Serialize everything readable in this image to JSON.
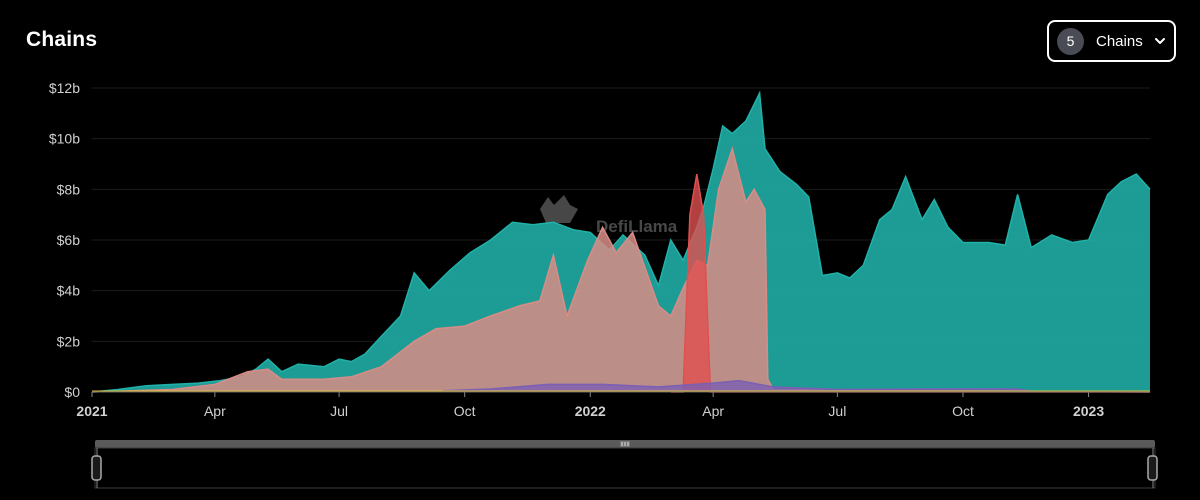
{
  "header": {
    "title": "Chains"
  },
  "chains_selector": {
    "count": "5",
    "label": "Chains",
    "icon": "chevron-down-icon"
  },
  "watermark": {
    "text": "DefiLlama"
  },
  "colors": {
    "series_1": "#20b2aa",
    "series_2": "#d88c86",
    "series_3": "#7b5fb3",
    "series_4": "#e05050",
    "series_5": "#e0c040",
    "background": "#000000"
  },
  "chart_data": {
    "type": "area",
    "title": "",
    "ylabel": "",
    "xlabel": "",
    "ylim": [
      0,
      12
    ],
    "y_unit": "$b",
    "y_tick_labels": [
      "$0",
      "$2b",
      "$4b",
      "$6b",
      "$8b",
      "$10b",
      "$12b"
    ],
    "x_tick_labels": [
      {
        "label": "2021",
        "date": "2021-01-01",
        "bold": true
      },
      {
        "label": "Apr",
        "date": "2021-04-01",
        "bold": false
      },
      {
        "label": "Jul",
        "date": "2021-07-01",
        "bold": false
      },
      {
        "label": "Oct",
        "date": "2021-10-01",
        "bold": false
      },
      {
        "label": "2022",
        "date": "2022-01-01",
        "bold": true
      },
      {
        "label": "Apr",
        "date": "2022-04-01",
        "bold": false
      },
      {
        "label": "Jul",
        "date": "2022-07-01",
        "bold": false
      },
      {
        "label": "Oct",
        "date": "2022-10-01",
        "bold": false
      },
      {
        "label": "2023",
        "date": "2023-01-01",
        "bold": true
      }
    ],
    "x_range": [
      "2021-01-01",
      "2023-02-15"
    ],
    "grid": true,
    "legend": "none",
    "series": [
      {
        "color": "#20b2aa",
        "points": [
          [
            "2021-01-01",
            0.0
          ],
          [
            "2021-01-20",
            0.1
          ],
          [
            "2021-02-10",
            0.25
          ],
          [
            "2021-03-01",
            0.3
          ],
          [
            "2021-03-20",
            0.35
          ],
          [
            "2021-04-05",
            0.45
          ],
          [
            "2021-04-20",
            0.6
          ],
          [
            "2021-05-01",
            0.9
          ],
          [
            "2021-05-10",
            1.3
          ],
          [
            "2021-05-20",
            0.8
          ],
          [
            "2021-06-01",
            1.1
          ],
          [
            "2021-06-20",
            1.0
          ],
          [
            "2021-07-01",
            1.3
          ],
          [
            "2021-07-10",
            1.2
          ],
          [
            "2021-07-20",
            1.5
          ],
          [
            "2021-08-01",
            2.2
          ],
          [
            "2021-08-15",
            3.0
          ],
          [
            "2021-08-25",
            4.7
          ],
          [
            "2021-09-05",
            4.0
          ],
          [
            "2021-09-20",
            4.8
          ],
          [
            "2021-10-05",
            5.5
          ],
          [
            "2021-10-20",
            6.0
          ],
          [
            "2021-11-05",
            6.7
          ],
          [
            "2021-11-20",
            6.6
          ],
          [
            "2021-12-05",
            6.7
          ],
          [
            "2021-12-20",
            6.4
          ],
          [
            "2022-01-01",
            6.3
          ],
          [
            "2022-01-15",
            5.6
          ],
          [
            "2022-01-25",
            6.2
          ],
          [
            "2022-02-10",
            5.4
          ],
          [
            "2022-02-20",
            4.2
          ],
          [
            "2022-03-01",
            6.0
          ],
          [
            "2022-03-10",
            5.2
          ],
          [
            "2022-03-20",
            6.5
          ],
          [
            "2022-03-25",
            7.3
          ],
          [
            "2022-04-01",
            8.8
          ],
          [
            "2022-04-08",
            10.5
          ],
          [
            "2022-04-15",
            10.2
          ],
          [
            "2022-04-25",
            10.7
          ],
          [
            "2022-05-05",
            11.8
          ],
          [
            "2022-05-09",
            9.6
          ],
          [
            "2022-05-20",
            8.7
          ],
          [
            "2022-06-01",
            8.2
          ],
          [
            "2022-06-10",
            7.7
          ],
          [
            "2022-06-20",
            4.6
          ],
          [
            "2022-07-01",
            4.7
          ],
          [
            "2022-07-10",
            4.5
          ],
          [
            "2022-07-20",
            5.0
          ],
          [
            "2022-08-01",
            6.8
          ],
          [
            "2022-08-10",
            7.2
          ],
          [
            "2022-08-20",
            8.5
          ],
          [
            "2022-09-01",
            6.8
          ],
          [
            "2022-09-10",
            7.6
          ],
          [
            "2022-09-20",
            6.5
          ],
          [
            "2022-10-01",
            5.9
          ],
          [
            "2022-10-20",
            5.9
          ],
          [
            "2022-11-01",
            5.8
          ],
          [
            "2022-11-10",
            7.8
          ],
          [
            "2022-11-20",
            5.7
          ],
          [
            "2022-12-05",
            6.2
          ],
          [
            "2022-12-20",
            5.9
          ],
          [
            "2023-01-01",
            6.0
          ],
          [
            "2023-01-15",
            7.8
          ],
          [
            "2023-01-25",
            8.3
          ],
          [
            "2023-02-05",
            8.6
          ],
          [
            "2023-02-15",
            8.0
          ]
        ]
      },
      {
        "color": "#d88c86",
        "points": [
          [
            "2021-01-01",
            0.0
          ],
          [
            "2021-03-01",
            0.1
          ],
          [
            "2021-04-01",
            0.3
          ],
          [
            "2021-04-25",
            0.8
          ],
          [
            "2021-05-10",
            0.9
          ],
          [
            "2021-05-20",
            0.5
          ],
          [
            "2021-06-20",
            0.5
          ],
          [
            "2021-07-10",
            0.6
          ],
          [
            "2021-08-01",
            1.0
          ],
          [
            "2021-08-25",
            2.0
          ],
          [
            "2021-09-10",
            2.5
          ],
          [
            "2021-10-01",
            2.6
          ],
          [
            "2021-10-20",
            3.0
          ],
          [
            "2021-11-10",
            3.4
          ],
          [
            "2021-11-25",
            3.6
          ],
          [
            "2021-12-05",
            5.4
          ],
          [
            "2021-12-15",
            3.0
          ],
          [
            "2021-12-30",
            5.2
          ],
          [
            "2022-01-10",
            6.5
          ],
          [
            "2022-01-20",
            5.5
          ],
          [
            "2022-02-01",
            6.3
          ],
          [
            "2022-02-20",
            3.4
          ],
          [
            "2022-03-01",
            3.0
          ],
          [
            "2022-03-10",
            4.1
          ],
          [
            "2022-03-20",
            5.2
          ],
          [
            "2022-03-28",
            5.0
          ],
          [
            "2022-04-05",
            8.0
          ],
          [
            "2022-04-15",
            9.6
          ],
          [
            "2022-04-25",
            7.5
          ],
          [
            "2022-05-01",
            8.0
          ],
          [
            "2022-05-09",
            7.2
          ],
          [
            "2022-05-11",
            0.5
          ],
          [
            "2022-05-15",
            0.1
          ],
          [
            "2023-02-15",
            0.0
          ]
        ]
      },
      {
        "color": "#e05050",
        "points": [
          [
            "2022-03-01",
            0.0
          ],
          [
            "2022-03-10",
            0.0
          ],
          [
            "2022-03-15",
            7.0
          ],
          [
            "2022-03-20",
            8.6
          ],
          [
            "2022-03-25",
            7.0
          ],
          [
            "2022-03-30",
            0.0
          ],
          [
            "2023-02-15",
            0.0
          ]
        ]
      },
      {
        "color": "#7b5fb3",
        "points": [
          [
            "2021-09-15",
            0.05
          ],
          [
            "2021-10-20",
            0.12
          ],
          [
            "2021-12-01",
            0.3
          ],
          [
            "2022-01-10",
            0.3
          ],
          [
            "2022-02-20",
            0.2
          ],
          [
            "2022-04-01",
            0.35
          ],
          [
            "2022-04-20",
            0.45
          ],
          [
            "2022-05-15",
            0.2
          ],
          [
            "2022-07-01",
            0.1
          ],
          [
            "2022-09-01",
            0.12
          ],
          [
            "2022-11-10",
            0.12
          ],
          [
            "2022-11-20",
            0.03
          ],
          [
            "2023-02-15",
            0.03
          ]
        ]
      },
      {
        "color": "#e0c040",
        "points": [
          [
            "2021-01-01",
            0.03
          ],
          [
            "2023-02-15",
            0.03
          ]
        ]
      }
    ]
  }
}
